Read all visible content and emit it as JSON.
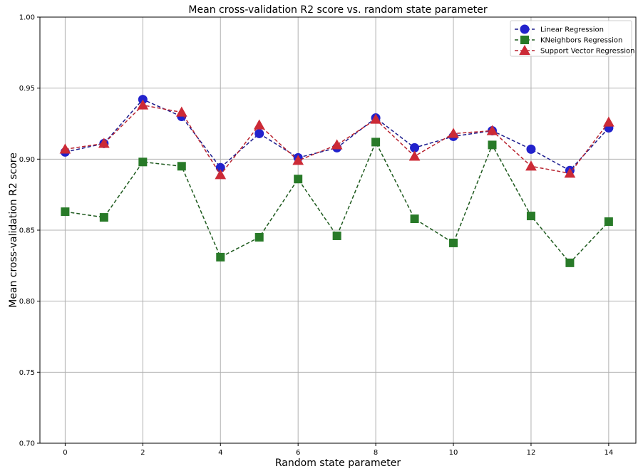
{
  "chart_data": {
    "type": "line",
    "title": "Mean cross-validation R2 score vs. random state parameter",
    "xlabel": "Random state parameter",
    "ylabel": "Mean cross-validation R2 score",
    "x": [
      0,
      1,
      2,
      3,
      4,
      5,
      6,
      7,
      8,
      9,
      10,
      11,
      12,
      13,
      14
    ],
    "xlim": [
      -0.65,
      14.7
    ],
    "ylim": [
      0.7,
      1.0
    ],
    "xticks": [
      0,
      2,
      4,
      6,
      8,
      10,
      12,
      14
    ],
    "yticks": [
      0.7,
      0.75,
      0.8,
      0.85,
      0.9,
      0.95,
      1.0
    ],
    "xtick_labels": [
      "0",
      "2",
      "4",
      "6",
      "8",
      "10",
      "12",
      "14"
    ],
    "ytick_labels": [
      "0.70",
      "0.75",
      "0.80",
      "0.85",
      "0.90",
      "0.95",
      "1.00"
    ],
    "grid": true,
    "legend_position": "top-right",
    "series": [
      {
        "name": "Linear Regression",
        "marker": "circle",
        "line_color": "#1a1a8c",
        "marker_color": "#2222cc",
        "values": [
          0.905,
          0.911,
          0.942,
          0.93,
          0.894,
          0.918,
          0.901,
          0.908,
          0.929,
          0.908,
          0.916,
          0.92,
          0.907,
          0.892,
          0.922
        ]
      },
      {
        "name": "KNeighbors Regression",
        "marker": "square",
        "line_color": "#1e5a1e",
        "marker_color": "#287a28",
        "values": [
          0.863,
          0.859,
          0.898,
          0.895,
          0.831,
          0.845,
          0.886,
          0.846,
          0.912,
          0.858,
          0.841,
          0.91,
          0.86,
          0.827,
          0.856
        ]
      },
      {
        "name": "Support Vector Regression",
        "marker": "triangle",
        "line_color": "#b82430",
        "marker_color": "#cc2a36",
        "values": [
          0.907,
          0.911,
          0.938,
          0.933,
          0.889,
          0.924,
          0.899,
          0.91,
          0.928,
          0.902,
          0.918,
          0.92,
          0.895,
          0.89,
          0.926
        ]
      }
    ]
  }
}
